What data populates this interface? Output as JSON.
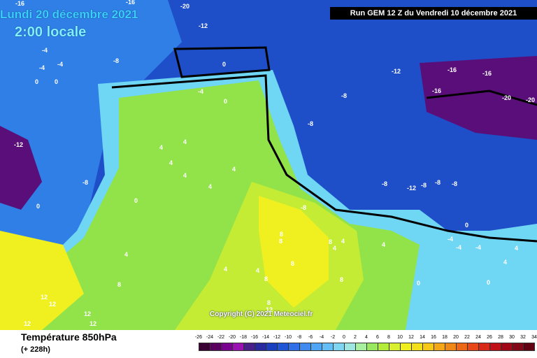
{
  "header": {
    "date": "Lundi 20 décembre 2021",
    "time": "2:00 locale",
    "run": "Run GEM 12 Z du Vendredi 10 décembre 2021"
  },
  "copyright": "Copyright (C) 2021 Meteociel.fr",
  "footer": {
    "parameter": "Température 850hPa",
    "lead_time": "(+ 228h)"
  },
  "legend": {
    "ticks": [
      "-26",
      "-24",
      "-22",
      "-20",
      "-18",
      "-16",
      "-14",
      "-12",
      "-10",
      "-8",
      "-6",
      "-4",
      "-2",
      "0",
      "2",
      "4",
      "6",
      "8",
      "10",
      "12",
      "14",
      "16",
      "18",
      "20",
      "22",
      "24",
      "26",
      "28",
      "30",
      "32",
      "34"
    ],
    "colors": [
      "#3a0033",
      "#5a0060",
      "#7a0090",
      "#9a10b0",
      "#4a1f8a",
      "#2a2aa0",
      "#1a3fbf",
      "#1e56d6",
      "#2f6fe8",
      "#3f8bf0",
      "#4fa6f4",
      "#63bff6",
      "#7fd6f2",
      "#9fe6e0",
      "#a8f0a0",
      "#9ae860",
      "#b4ec3a",
      "#d8f030",
      "#f0f020",
      "#f4e01a",
      "#f6c818",
      "#f4a818",
      "#f08818",
      "#ec6818",
      "#e84818",
      "#d82818",
      "#c01018",
      "#a00818",
      "#800818",
      "#600010",
      "#400008"
    ],
    "tooltip": "°C"
  },
  "map": {
    "labels": [
      "-16",
      "-16",
      "-20",
      "-12",
      "-8",
      "-4",
      "-4",
      "-4",
      "0",
      "0",
      "0",
      "-8",
      "-12",
      "-16",
      "-16",
      "-16",
      "-20",
      "-20",
      "-12",
      "-8",
      "-8",
      "-4",
      "0",
      "0",
      "4",
      "4",
      "4",
      "4",
      "4",
      "4",
      "4",
      "0",
      "-12",
      "-8",
      "-8",
      "-8",
      "-8",
      "-8",
      "8",
      "8",
      "8",
      "8",
      "4",
      "4",
      "4",
      "4",
      "4",
      "8",
      "8",
      "8",
      "8",
      "12",
      "12",
      "12",
      "12",
      "12",
      "12",
      "-4",
      "-4",
      "-4",
      "0",
      "0",
      "0",
      "4",
      "4"
    ],
    "colors": {
      "deep_cold": "#5a0e7a",
      "cold_blue": "#1e4fc8",
      "sea_blue": "#2f7fe6",
      "cyan": "#6fd6f4",
      "green": "#92e24a",
      "lime": "#c4ec34",
      "yellow": "#f0f020"
    }
  }
}
